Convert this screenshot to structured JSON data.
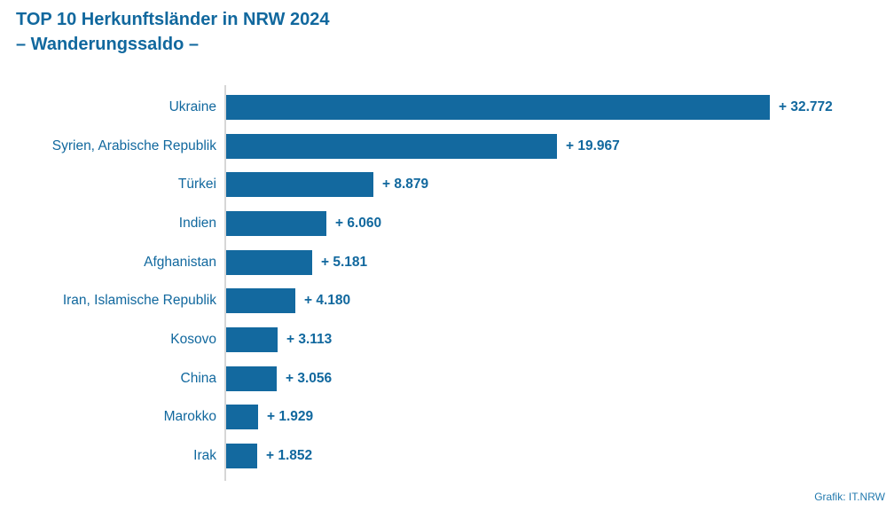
{
  "title": {
    "line1": "TOP 10 Herkunftsländer in NRW 2024",
    "line2": "– Wanderungssaldo –"
  },
  "footer": {
    "credit": "Grafik: IT.NRW"
  },
  "colors": {
    "accent_text": "#11689e",
    "bar": "#13699f",
    "axis_line": "#d6d6d6",
    "background": "#ffffff"
  },
  "chart_data": {
    "type": "bar",
    "orientation": "horizontal",
    "title": "TOP 10 Herkunftsländer in NRW 2024 – Wanderungssaldo –",
    "xlabel": "",
    "ylabel": "",
    "categories": [
      "Ukraine",
      "Syrien, Arabische Republik",
      "Türkei",
      "Indien",
      "Afghanistan",
      "Iran, Islamische Republik",
      "Kosovo",
      "China",
      "Marokko",
      "Irak"
    ],
    "values": [
      32772,
      19967,
      8879,
      6060,
      5181,
      4180,
      3113,
      3056,
      1929,
      1852
    ],
    "value_labels": [
      "+ 32.772",
      "+ 19.967",
      "+ 8.879",
      "+ 6.060",
      "+ 5.181",
      "+ 4.180",
      "+ 3.113",
      "+ 3.056",
      "+ 1.929",
      "+ 1.852"
    ],
    "xlim": [
      0,
      32772
    ],
    "grid": false,
    "legend": false,
    "x_axis_ticks_visible": false,
    "source_label": "Grafik: IT.NRW"
  }
}
